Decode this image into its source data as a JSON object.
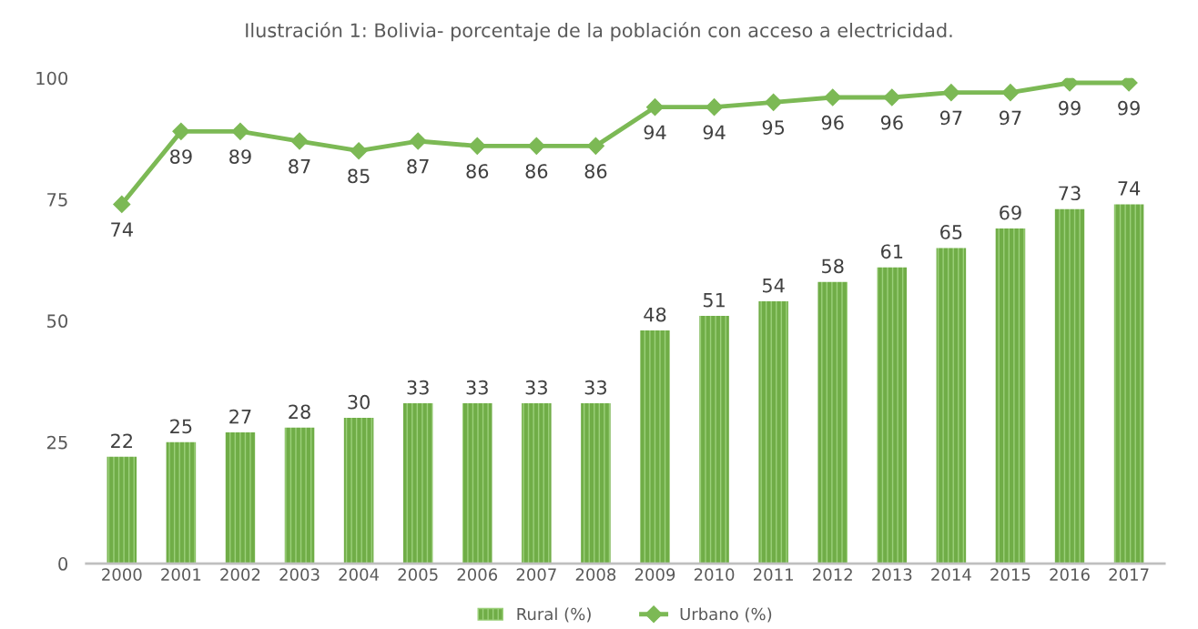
{
  "chart_data": {
    "type": "bar",
    "title": "Ilustración 1: Bolivia- porcentaje de la población con acceso a electricidad.",
    "categories": [
      "2000",
      "2001",
      "2002",
      "2003",
      "2004",
      "2005",
      "2006",
      "2007",
      "2008",
      "2009",
      "2010",
      "2011",
      "2012",
      "2013",
      "2014",
      "2015",
      "2016",
      "2017"
    ],
    "series": [
      {
        "name": "Rural (%)",
        "color": "#70ad47",
        "values": [
          22,
          25,
          27,
          28,
          30,
          33,
          33,
          33,
          33,
          48,
          51,
          54,
          58,
          61,
          65,
          69,
          73,
          74
        ]
      },
      {
        "name": "Urbano (%)",
        "type": "line",
        "color": "#7cb955",
        "marker": "diamond",
        "values": [
          74,
          89,
          89,
          87,
          85,
          87,
          86,
          86,
          86,
          94,
          94,
          95,
          96,
          96,
          97,
          97,
          99,
          99
        ]
      }
    ],
    "ylim": [
      0,
      100
    ],
    "yticks": [
      0,
      25,
      50,
      75,
      100
    ],
    "grid": false,
    "legend": "bottom",
    "data_labels": true
  }
}
